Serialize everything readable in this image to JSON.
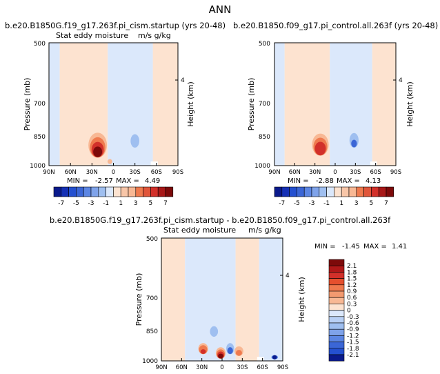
{
  "page_title": "ANN",
  "colors": {
    "blue_dark": "#0a1a8c",
    "blue_mid": "#3b66d6",
    "blue_light": "#9fbff0",
    "blue_pale": "#dbe8fb",
    "white": "#ffffff",
    "peach_pale": "#fde3d0",
    "peach": "#f8b894",
    "orange": "#ef7a4e",
    "red": "#d2302a",
    "red_dark": "#7d0a0a"
  },
  "chart_data": [
    {
      "id": "panel-1",
      "type": "heatmap",
      "title": "b.e20.B1850G.f19_g17.263f.pi_cism.startup (yrs 20-48)",
      "left_label": "Stat eddy moisture",
      "right_label": "m/s g/kg",
      "ylabel": "Pressure (mb)",
      "ylabel_right": "Height (km)",
      "yticks": [
        "500",
        "700",
        "850",
        "1000"
      ],
      "ytick_right": "4",
      "xticks": [
        "90N",
        "60N",
        "30N",
        "0",
        "30S",
        "60S",
        "90S"
      ],
      "min_label": "MIN =",
      "min_value": "-2.57",
      "max_label": "MAX =",
      "max_value": "4.49",
      "colorbar_ticks": [
        "-7",
        "-5",
        "-3",
        "-1",
        "1",
        "3",
        "5",
        "7"
      ],
      "background_regions": [
        {
          "x0": -90,
          "x1": -75,
          "tone": "pale_blue"
        },
        {
          "x0": -75,
          "x1": -8,
          "tone": "peach_pale"
        },
        {
          "x0": -8,
          "x1": 55,
          "tone": "pale_blue"
        },
        {
          "x0": 55,
          "x1": 90,
          "tone": "peach_pale"
        }
      ],
      "features": [
        {
          "lat": -22,
          "p": 950,
          "intensity": 4.49,
          "width_deg": 16,
          "top_p": 780
        },
        {
          "lat": -5,
          "p": 990,
          "intensity": 1.2,
          "width_deg": 6,
          "top_p": 900
        },
        {
          "lat": 30,
          "p": 900,
          "intensity": -2.57,
          "width_deg": 8,
          "top_p": 790
        },
        {
          "lat": 14,
          "p": 850,
          "intensity": -1.0,
          "width_deg": 10,
          "top_p": 700
        }
      ]
    },
    {
      "id": "panel-2",
      "type": "heatmap",
      "title": "b.e20.B1850.f09_g17.pi_control.all.263f (yrs 20-48)",
      "left_label": "",
      "right_label": "",
      "ylabel": "Pressure (mb)",
      "ylabel_right": "Height (km)",
      "yticks": [
        "500",
        "700",
        "850",
        "1000"
      ],
      "ytick_right": "4",
      "xticks": [
        "90N",
        "60N",
        "30N",
        "0",
        "30S",
        "60S",
        "90S"
      ],
      "min_label": "MIN =",
      "min_value": "-2.88",
      "max_label": "MAX =",
      "max_value": "4.13",
      "colorbar_ticks": [
        "-7",
        "-5",
        "-3",
        "-1",
        "1",
        "3",
        "5",
        "7"
      ],
      "background_regions": [
        {
          "x0": -90,
          "x1": -75,
          "tone": "pale_blue"
        },
        {
          "x0": -75,
          "x1": -8,
          "tone": "peach_pale"
        },
        {
          "x0": -8,
          "x1": 55,
          "tone": "pale_blue"
        },
        {
          "x0": 55,
          "x1": 90,
          "tone": "peach_pale"
        }
      ],
      "features": [
        {
          "lat": -22,
          "p": 940,
          "intensity": 4.13,
          "width_deg": 15,
          "top_p": 790
        },
        {
          "lat": -5,
          "p": 990,
          "intensity": 1.0,
          "width_deg": 6,
          "top_p": 900
        },
        {
          "lat": 28,
          "p": 900,
          "intensity": -2.88,
          "width_deg": 9,
          "top_p": 780
        },
        {
          "lat": 12,
          "p": 850,
          "intensity": -1.0,
          "width_deg": 10,
          "top_p": 700
        }
      ]
    },
    {
      "id": "panel-diff",
      "type": "heatmap",
      "title": "b.e20.B1850G.f19_g17.263f.pi_cism.startup - b.e20.B1850.f09_g17.pi_control.all.263f",
      "left_label": "Stat eddy moisture",
      "right_label": "m/s g/kg",
      "ylabel": "Pressure (mb)",
      "ylabel_right": "Height (km)",
      "yticks": [
        "500",
        "700",
        "850",
        "1000"
      ],
      "ytick_right": "4",
      "xticks": [
        "90N",
        "60N",
        "30N",
        "0",
        "30S",
        "60S",
        "90S"
      ],
      "min_label": "MIN =",
      "min_value": "-1.45",
      "max_label": "MAX =",
      "max_value": "1.41",
      "colorbar_ticks": [
        "2.1",
        "1.8",
        "1.5",
        "1.2",
        "0.9",
        "0.6",
        "0.3",
        "0",
        "-0.3",
        "-0.6",
        "-0.9",
        "-1.2",
        "-1.5",
        "-1.8",
        "-2.1"
      ],
      "background_regions": [
        {
          "x0": -90,
          "x1": -55,
          "tone": "peach_pale"
        },
        {
          "x0": -55,
          "x1": 20,
          "tone": "pale_blue"
        },
        {
          "x0": 20,
          "x1": 55,
          "tone": "peach_pale"
        },
        {
          "x0": 55,
          "x1": 90,
          "tone": "pale_blue"
        }
      ],
      "features": [
        {
          "lat": -28,
          "p": 960,
          "intensity": 1.2,
          "width_deg": 8,
          "top_p": 880
        },
        {
          "lat": -2,
          "p": 985,
          "intensity": 1.41,
          "width_deg": 8,
          "top_p": 900
        },
        {
          "lat": 12,
          "p": 960,
          "intensity": -1.2,
          "width_deg": 6,
          "top_p": 880
        },
        {
          "lat": 25,
          "p": 970,
          "intensity": 0.9,
          "width_deg": 7,
          "top_p": 900
        },
        {
          "lat": -12,
          "p": 870,
          "intensity": -0.5,
          "width_deg": 10,
          "top_p": 760
        },
        {
          "lat": 78,
          "p": 990,
          "intensity": -1.45,
          "width_deg": 5,
          "top_p": 960
        }
      ]
    }
  ]
}
